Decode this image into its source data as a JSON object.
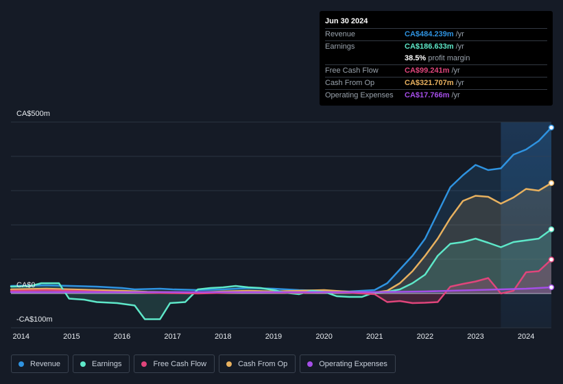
{
  "tooltip": {
    "date": "Jun 30 2024",
    "rows": [
      {
        "label": "Revenue",
        "value": "CA$484.239m",
        "unit": "/yr",
        "color": "#2f93e0"
      },
      {
        "label": "Earnings",
        "value": "CA$186.633m",
        "unit": "/yr",
        "color": "#5ee8c9"
      },
      {
        "label": "Free Cash Flow",
        "value": "CA$99.241m",
        "unit": "/yr",
        "color": "#e0457b"
      },
      {
        "label": "Cash From Op",
        "value": "CA$321.707m",
        "unit": "/yr",
        "color": "#e8b15f"
      },
      {
        "label": "Operating Expenses",
        "value": "CA$17.766m",
        "unit": "/yr",
        "color": "#a54ee8"
      }
    ],
    "margin": {
      "value": "38.5%",
      "label": "profit margin"
    }
  },
  "legend": [
    {
      "label": "Revenue",
      "color": "#2f93e0"
    },
    {
      "label": "Earnings",
      "color": "#5ee8c9"
    },
    {
      "label": "Free Cash Flow",
      "color": "#e0457b"
    },
    {
      "label": "Cash From Op",
      "color": "#e8b15f"
    },
    {
      "label": "Operating Expenses",
      "color": "#a54ee8"
    }
  ],
  "chart_data": {
    "type": "area",
    "title": "",
    "xlabel": "",
    "ylabel": "",
    "y_tick_labels": [
      "CA$500m",
      "CA$0",
      "-CA$100m"
    ],
    "ylim": [
      -100,
      500
    ],
    "xlim": [
      2013.8,
      2024.5
    ],
    "x_ticks": [
      2014,
      2015,
      2016,
      2017,
      2018,
      2019,
      2020,
      2021,
      2022,
      2023,
      2024
    ],
    "x_tick_labels": [
      "2014",
      "2015",
      "2016",
      "2017",
      "2018",
      "2019",
      "2020",
      "2021",
      "2022",
      "2023",
      "2024"
    ],
    "highlight_start": 2023.5,
    "series": [
      {
        "name": "Revenue",
        "color": "#2f93e0",
        "points": [
          [
            2013.8,
            22
          ],
          [
            2014.5,
            24
          ],
          [
            2015,
            22
          ],
          [
            2015.5,
            20
          ],
          [
            2016,
            16
          ],
          [
            2016.25,
            12
          ],
          [
            2016.75,
            14
          ],
          [
            2017,
            12
          ],
          [
            2017.5,
            10
          ],
          [
            2018,
            12
          ],
          [
            2018.5,
            16
          ],
          [
            2019,
            14
          ],
          [
            2019.5,
            10
          ],
          [
            2020,
            8
          ],
          [
            2020.5,
            6
          ],
          [
            2021,
            10
          ],
          [
            2021.25,
            30
          ],
          [
            2021.5,
            70
          ],
          [
            2021.75,
            110
          ],
          [
            2022,
            160
          ],
          [
            2022.25,
            235
          ],
          [
            2022.5,
            310
          ],
          [
            2022.75,
            345
          ],
          [
            2023,
            375
          ],
          [
            2023.25,
            360
          ],
          [
            2023.5,
            365
          ],
          [
            2023.75,
            405
          ],
          [
            2024,
            420
          ],
          [
            2024.25,
            445
          ],
          [
            2024.5,
            484
          ]
        ]
      },
      {
        "name": "Cash From Op",
        "color": "#e8b15f",
        "points": [
          [
            2013.8,
            12
          ],
          [
            2014.5,
            14
          ],
          [
            2015,
            12
          ],
          [
            2015.5,
            10
          ],
          [
            2016,
            8
          ],
          [
            2016.5,
            5
          ],
          [
            2017,
            4
          ],
          [
            2017.5,
            3
          ],
          [
            2018,
            6
          ],
          [
            2018.5,
            8
          ],
          [
            2019,
            6
          ],
          [
            2019.5,
            8
          ],
          [
            2020,
            10
          ],
          [
            2020.5,
            5
          ],
          [
            2021,
            3
          ],
          [
            2021.25,
            8
          ],
          [
            2021.5,
            30
          ],
          [
            2021.75,
            65
          ],
          [
            2022,
            110
          ],
          [
            2022.25,
            160
          ],
          [
            2022.5,
            220
          ],
          [
            2022.75,
            270
          ],
          [
            2023,
            285
          ],
          [
            2023.25,
            282
          ],
          [
            2023.5,
            262
          ],
          [
            2023.75,
            280
          ],
          [
            2024,
            305
          ],
          [
            2024.25,
            300
          ],
          [
            2024.5,
            322
          ]
        ]
      },
      {
        "name": "Earnings",
        "color": "#5ee8c9",
        "points": [
          [
            2013.8,
            20
          ],
          [
            2014.2,
            22
          ],
          [
            2014.4,
            30
          ],
          [
            2014.75,
            30
          ],
          [
            2014.95,
            -15
          ],
          [
            2015.25,
            -18
          ],
          [
            2015.5,
            -25
          ],
          [
            2015.9,
            -28
          ],
          [
            2016,
            -30
          ],
          [
            2016.25,
            -35
          ],
          [
            2016.45,
            -75
          ],
          [
            2016.75,
            -75
          ],
          [
            2016.95,
            -28
          ],
          [
            2017.25,
            -25
          ],
          [
            2017.5,
            12
          ],
          [
            2017.75,
            16
          ],
          [
            2018,
            18
          ],
          [
            2018.25,
            22
          ],
          [
            2018.5,
            18
          ],
          [
            2018.75,
            16
          ],
          [
            2019,
            10
          ],
          [
            2019.25,
            2
          ],
          [
            2019.5,
            -2
          ],
          [
            2019.75,
            8
          ],
          [
            2020,
            5
          ],
          [
            2020.25,
            -8
          ],
          [
            2020.5,
            -10
          ],
          [
            2020.75,
            -10
          ],
          [
            2021,
            3
          ],
          [
            2021.25,
            5
          ],
          [
            2021.5,
            12
          ],
          [
            2021.75,
            30
          ],
          [
            2022,
            55
          ],
          [
            2022.25,
            110
          ],
          [
            2022.5,
            145
          ],
          [
            2022.75,
            150
          ],
          [
            2023,
            160
          ],
          [
            2023.25,
            148
          ],
          [
            2023.5,
            135
          ],
          [
            2023.75,
            150
          ],
          [
            2024,
            155
          ],
          [
            2024.25,
            160
          ],
          [
            2024.5,
            187
          ]
        ]
      },
      {
        "name": "Free Cash Flow",
        "color": "#e0457b",
        "points": [
          [
            2013.8,
            8
          ],
          [
            2014.5,
            10
          ],
          [
            2015,
            8
          ],
          [
            2015.5,
            6
          ],
          [
            2016,
            4
          ],
          [
            2016.5,
            2
          ],
          [
            2017,
            1
          ],
          [
            2017.5,
            0
          ],
          [
            2018,
            2
          ],
          [
            2018.5,
            4
          ],
          [
            2019,
            3
          ],
          [
            2019.5,
            2
          ],
          [
            2020,
            4
          ],
          [
            2020.5,
            2
          ],
          [
            2021,
            -2
          ],
          [
            2021.25,
            -25
          ],
          [
            2021.5,
            -22
          ],
          [
            2021.75,
            -28
          ],
          [
            2022,
            -27
          ],
          [
            2022.25,
            -25
          ],
          [
            2022.5,
            20
          ],
          [
            2022.75,
            28
          ],
          [
            2023,
            35
          ],
          [
            2023.25,
            45
          ],
          [
            2023.5,
            0
          ],
          [
            2023.75,
            8
          ],
          [
            2024,
            62
          ],
          [
            2024.25,
            65
          ],
          [
            2024.5,
            99
          ]
        ]
      },
      {
        "name": "Operating Expenses",
        "color": "#a54ee8",
        "points": [
          [
            2013.8,
            4
          ],
          [
            2014.5,
            4
          ],
          [
            2015,
            4
          ],
          [
            2015.5,
            4
          ],
          [
            2016,
            4
          ],
          [
            2016.5,
            4
          ],
          [
            2017,
            4
          ],
          [
            2017.5,
            4
          ],
          [
            2018,
            4
          ],
          [
            2018.5,
            4
          ],
          [
            2019,
            4
          ],
          [
            2019.5,
            4
          ],
          [
            2020,
            4
          ],
          [
            2020.5,
            4
          ],
          [
            2021,
            4
          ],
          [
            2021.5,
            5
          ],
          [
            2022,
            6
          ],
          [
            2022.5,
            8
          ],
          [
            2023,
            10
          ],
          [
            2023.5,
            12
          ],
          [
            2024,
            14
          ],
          [
            2024.5,
            18
          ]
        ]
      }
    ]
  }
}
